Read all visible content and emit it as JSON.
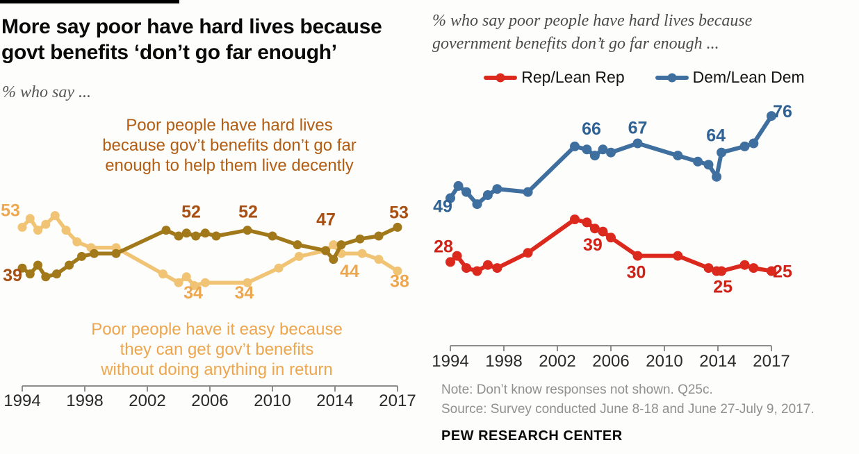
{
  "page": {
    "background": "#fdfdfc",
    "top_bar_color": "#000000"
  },
  "left_panel": {
    "title": "More say poor have hard lives because\ngovt benefits ‘don’t go far enough’",
    "subtitle": "% who say ...",
    "annotation_hard": "Poor people have hard lives\nbecause gov’t benefits don’t go far\nenough to help them live decently",
    "annotation_hard_color": "#b25d12",
    "annotation_easy": "Poor people have it easy because\nthey can get gov’t benefits\nwithout doing anything in return",
    "annotation_easy_color": "#eda64e"
  },
  "right_panel": {
    "title": "% who say poor people have hard lives because\ngovernment benefits don’t go far enough ...",
    "note": "Note: Don’t know responses not shown. Q25c.",
    "source": "Source: Survey conducted June 8-18 and June 27-July 9, 2017.",
    "brand": "PEW RESEARCH CENTER"
  },
  "chart_data": [
    {
      "id": "overall-trend",
      "type": "line",
      "title": "More say poor have hard lives because govt benefits ‘don’t go far enough’",
      "subtitle": "% who say ...",
      "x_ticks": [
        1994,
        1998,
        2002,
        2006,
        2010,
        2014,
        2017
      ],
      "ylim": [
        30,
        60
      ],
      "grid": false,
      "legend_position": "annotations-inline",
      "series": [
        {
          "key": "easy",
          "name": "Poor people have it easy because they can get gov’t benefits without doing anything in return",
          "color": "#f0c474",
          "label_color": "#eda74f",
          "points": [
            [
              1994,
              53
            ],
            [
              1994.5,
              56
            ],
            [
              1995,
              52
            ],
            [
              1995.5,
              54
            ],
            [
              1996.1,
              57
            ],
            [
              1996.8,
              52
            ],
            [
              1997.5,
              48
            ],
            [
              1998.4,
              46
            ],
            [
              2000,
              46
            ],
            [
              2003,
              37
            ],
            [
              2004,
              34
            ],
            [
              2004.5,
              36
            ],
            [
              2005,
              33
            ],
            [
              2005.7,
              34
            ],
            [
              2008.4,
              34
            ],
            [
              2010.4,
              39
            ],
            [
              2011.7,
              43
            ],
            [
              2013.4,
              45
            ],
            [
              2013.9,
              47
            ],
            [
              2014.3,
              44
            ],
            [
              2015.3,
              44
            ],
            [
              2016.1,
              42
            ],
            [
              2017,
              38
            ]
          ],
          "value_labels": [
            {
              "text": "53",
              "year": 1994,
              "value": 53,
              "dx": -17,
              "dy": -24
            },
            {
              "text": "34",
              "year": 2004,
              "value": 34,
              "dx": 21,
              "dy": 15
            },
            {
              "text": "34",
              "year": 2008.2,
              "value": 34,
              "dx": 0,
              "dy": 15
            },
            {
              "text": "44",
              "year": 2014.3,
              "value": 44,
              "dx": 12,
              "dy": 26
            },
            {
              "text": "38",
              "year": 2017,
              "value": 38,
              "dx": 3,
              "dy": 15
            }
          ]
        },
        {
          "key": "hard-lives",
          "name": "Poor people have hard lives because gov’t benefits don’t go far enough to help them live decently",
          "color": "#a1781a",
          "label_color": "#a84e10",
          "points": [
            [
              1994,
              39
            ],
            [
              1994.5,
              37
            ],
            [
              1995,
              40
            ],
            [
              1995.5,
              36
            ],
            [
              1996.2,
              37
            ],
            [
              1997,
              40
            ],
            [
              1997.8,
              43
            ],
            [
              1998.6,
              44
            ],
            [
              2000,
              44
            ],
            [
              2003.2,
              52
            ],
            [
              2004,
              50
            ],
            [
              2004.5,
              51
            ],
            [
              2005.1,
              50
            ],
            [
              2005.7,
              51
            ],
            [
              2006.4,
              50
            ],
            [
              2008.4,
              52
            ],
            [
              2010,
              50
            ],
            [
              2011.6,
              47
            ],
            [
              2013.4,
              45
            ],
            [
              2013.9,
              42
            ],
            [
              2014.3,
              47
            ],
            [
              2015.2,
              49
            ],
            [
              2016.1,
              50
            ],
            [
              2017,
              53
            ]
          ],
          "value_labels": [
            {
              "text": "39",
              "year": 1994,
              "value": 39,
              "dx": -14,
              "dy": 11
            },
            {
              "text": "52",
              "year": 2003.2,
              "value": 52,
              "dx": 36,
              "dy": -26
            },
            {
              "text": "52",
              "year": 2008.4,
              "value": 52,
              "dx": 1,
              "dy": -26
            },
            {
              "text": "47",
              "year": 2014.3,
              "value": 47,
              "dx": -22,
              "dy": -36
            },
            {
              "text": "53",
              "year": 2017,
              "value": 53,
              "dx": 2,
              "dy": -21
            }
          ]
        }
      ]
    },
    {
      "id": "party-trend",
      "type": "line",
      "title": "% who say poor people have hard lives because government benefits don’t go far enough ...",
      "x_ticks": [
        1994,
        1998,
        2002,
        2006,
        2010,
        2014,
        2017
      ],
      "ylim": [
        20,
        80
      ],
      "grid": false,
      "legend_position": "top",
      "series": [
        {
          "key": "rep",
          "name": "Rep/Lean Rep",
          "color": "#dc291e",
          "label_color": "#cf2116",
          "points": [
            [
              1994,
              28
            ],
            [
              1994.5,
              30
            ],
            [
              1995.2,
              26
            ],
            [
              1996,
              25
            ],
            [
              1996.8,
              27
            ],
            [
              1997.5,
              26
            ],
            [
              1999.8,
              31
            ],
            [
              2003.3,
              42
            ],
            [
              2004.2,
              41
            ],
            [
              2004.8,
              39
            ],
            [
              2005.4,
              38
            ],
            [
              2006,
              36
            ],
            [
              2008,
              30
            ],
            [
              2011,
              30
            ],
            [
              2013.3,
              26
            ],
            [
              2013.9,
              25
            ],
            [
              2014.2,
              25
            ],
            [
              2015.5,
              27
            ],
            [
              2016,
              26
            ],
            [
              2017,
              25
            ]
          ],
          "value_labels": [
            {
              "text": "28",
              "year": 1994,
              "value": 28,
              "dx": -10,
              "dy": -22
            },
            {
              "text": "39",
              "year": 2004.8,
              "value": 39,
              "dx": -3,
              "dy": 24
            },
            {
              "text": "30",
              "year": 2008,
              "value": 30,
              "dx": -2,
              "dy": 24
            },
            {
              "text": "25",
              "year": 2013.9,
              "value": 25,
              "dx": 9,
              "dy": 23
            },
            {
              "text": "25",
              "year": 2017,
              "value": 25,
              "dx": 16,
              "dy": 1
            }
          ]
        },
        {
          "key": "dem",
          "name": "Dem/Lean Dem",
          "color": "#3e6f9f",
          "label_color": "#2f6294",
          "points": [
            [
              1994,
              49
            ],
            [
              1994.6,
              53
            ],
            [
              1995.2,
              51
            ],
            [
              1996,
              47
            ],
            [
              1996.8,
              50
            ],
            [
              1997.5,
              52
            ],
            [
              1999.8,
              51
            ],
            [
              2003.3,
              66
            ],
            [
              2004.2,
              65
            ],
            [
              2004.8,
              63
            ],
            [
              2005.4,
              65
            ],
            [
              2006,
              64
            ],
            [
              2008,
              67
            ],
            [
              2011,
              63
            ],
            [
              2012.5,
              61
            ],
            [
              2013.3,
              60
            ],
            [
              2013.9,
              56
            ],
            [
              2014.2,
              64
            ],
            [
              2015.5,
              66
            ],
            [
              2016,
              67
            ],
            [
              2017,
              76
            ]
          ],
          "value_labels": [
            {
              "text": "49",
              "year": 1994,
              "value": 49,
              "dx": -11,
              "dy": 12
            },
            {
              "text": "66",
              "year": 2003.3,
              "value": 66,
              "dx": 24,
              "dy": -25
            },
            {
              "text": "67",
              "year": 2008,
              "value": 67,
              "dx": 0,
              "dy": -22
            },
            {
              "text": "64",
              "year": 2014.2,
              "value": 64,
              "dx": -8,
              "dy": -24
            },
            {
              "text": "76",
              "year": 2017,
              "value": 76,
              "dx": 16,
              "dy": -6
            }
          ]
        }
      ]
    }
  ]
}
